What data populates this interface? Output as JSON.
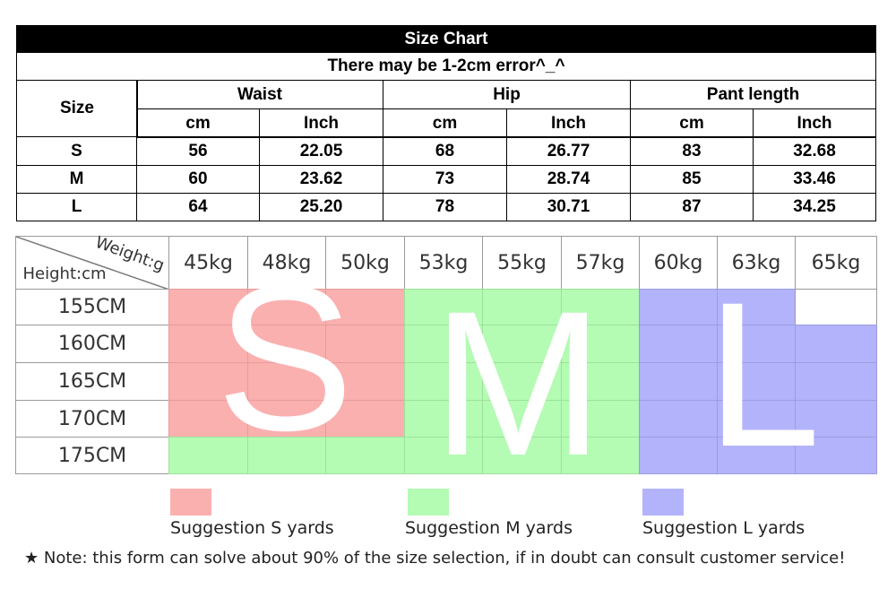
{
  "size_table": {
    "title": "Size Chart",
    "subtitle": "There may be 1-2cm error^_^",
    "size_header": "Size",
    "groups": [
      "Waist",
      "Hip",
      "Pant length"
    ],
    "units": [
      "cm",
      "Inch",
      "cm",
      "Inch",
      "cm",
      "Inch"
    ],
    "rows": [
      [
        "S",
        "56",
        "22.05",
        "68",
        "26.77",
        "83",
        "32.68"
      ],
      [
        "M",
        "60",
        "23.62",
        "73",
        "28.74",
        "85",
        "33.46"
      ],
      [
        "L",
        "64",
        "25.20",
        "78",
        "30.71",
        "87",
        "34.25"
      ]
    ]
  },
  "weight_chart": {
    "corner_weight": "Weight:g",
    "corner_height": "Height:cm",
    "weights": [
      "45kg",
      "48kg",
      "50kg",
      "53kg",
      "55kg",
      "57kg",
      "60kg",
      "63kg",
      "65kg"
    ],
    "heights": [
      "155CM",
      "160CM",
      "165CM",
      "170CM",
      "175CM"
    ],
    "zone_letters": [
      "S",
      "M",
      "L"
    ]
  },
  "legend": [
    "Suggestion S yards",
    "Suggestion M yards",
    "Suggestion L yards"
  ],
  "note": "★ Note: this form can solve about 90% of the size selection, if in doubt can consult customer service!"
}
